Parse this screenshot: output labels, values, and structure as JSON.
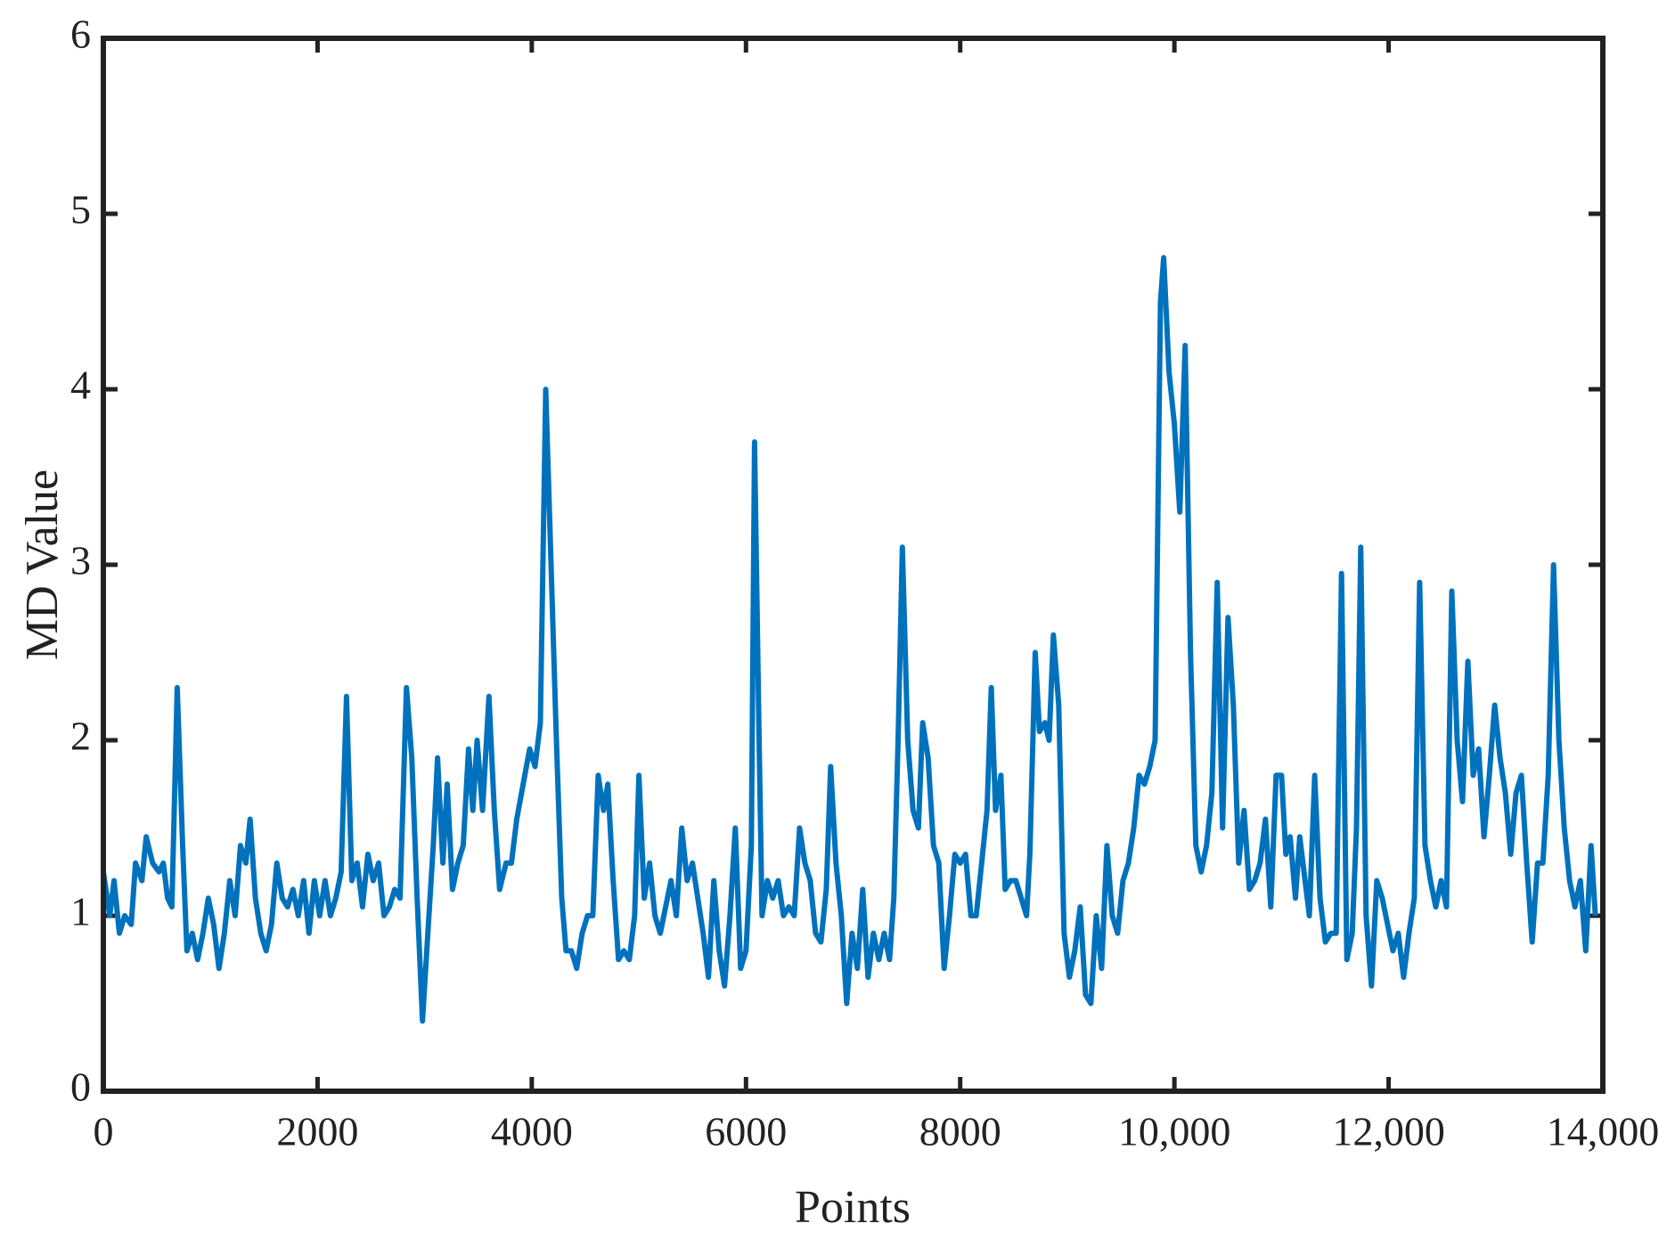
{
  "chart_data": {
    "type": "line",
    "x_label": "Points",
    "y_label": "MD Value",
    "xlim": [
      0,
      14000
    ],
    "ylim": [
      0,
      6
    ],
    "xticks": [
      0,
      2000,
      4000,
      6000,
      8000,
      {
        "value": 10000,
        "label": "10,000"
      },
      {
        "value": 12000,
        "label": "12,000"
      },
      {
        "value": 14000,
        "label": "14,000"
      }
    ],
    "yticks": [
      0,
      1,
      2,
      3,
      4,
      5,
      6
    ],
    "grid": false,
    "series": [
      {
        "color": "#0072bd",
        "x": [
          0,
          60,
          100,
          150,
          200,
          260,
          300,
          360,
          400,
          460,
          520,
          560,
          600,
          640,
          690,
          740,
          780,
          830,
          880,
          930,
          980,
          1030,
          1080,
          1130,
          1180,
          1230,
          1280,
          1330,
          1370,
          1420,
          1470,
          1520,
          1570,
          1620,
          1670,
          1720,
          1770,
          1820,
          1870,
          1920,
          1970,
          2020,
          2070,
          2120,
          2170,
          2220,
          2270,
          2320,
          2370,
          2420,
          2470,
          2520,
          2570,
          2620,
          2670,
          2720,
          2770,
          2830,
          2880,
          2930,
          2980,
          3030,
          3080,
          3120,
          3170,
          3210,
          3260,
          3310,
          3360,
          3410,
          3450,
          3490,
          3540,
          3600,
          3650,
          3700,
          3760,
          3810,
          3860,
          3920,
          3980,
          4030,
          4080,
          4130,
          4180,
          4230,
          4280,
          4320,
          4370,
          4420,
          4470,
          4520,
          4570,
          4620,
          4670,
          4710,
          4760,
          4810,
          4860,
          4910,
          4960,
          5000,
          5050,
          5100,
          5150,
          5200,
          5250,
          5300,
          5350,
          5400,
          5450,
          5500,
          5550,
          5600,
          5650,
          5700,
          5750,
          5800,
          5850,
          5900,
          5950,
          6000,
          6050,
          6080,
          6120,
          6150,
          6200,
          6250,
          6300,
          6350,
          6400,
          6450,
          6500,
          6550,
          6600,
          6650,
          6700,
          6750,
          6790,
          6840,
          6890,
          6940,
          6990,
          7040,
          7090,
          7140,
          7190,
          7240,
          7290,
          7340,
          7380,
          7420,
          7460,
          7510,
          7560,
          7610,
          7650,
          7700,
          7750,
          7800,
          7850,
          7900,
          7950,
          8000,
          8050,
          8100,
          8150,
          8200,
          8250,
          8290,
          8330,
          8380,
          8420,
          8470,
          8520,
          8570,
          8620,
          8650,
          8700,
          8740,
          8790,
          8830,
          8870,
          8920,
          8970,
          9020,
          9070,
          9120,
          9170,
          9220,
          9270,
          9320,
          9370,
          9420,
          9470,
          9520,
          9570,
          9620,
          9670,
          9720,
          9770,
          9820,
          9870,
          9900,
          9950,
          10000,
          10050,
          10100,
          10150,
          10200,
          10250,
          10300,
          10350,
          10400,
          10450,
          10500,
          10550,
          10600,
          10650,
          10700,
          10750,
          10800,
          10850,
          10900,
          10950,
          11000,
          11040,
          11080,
          11130,
          11170,
          11220,
          11260,
          11310,
          11360,
          11410,
          11460,
          11510,
          11560,
          11610,
          11660,
          11700,
          11740,
          11790,
          11840,
          11890,
          11940,
          11990,
          12040,
          12090,
          12140,
          12190,
          12240,
          12290,
          12340,
          12390,
          12440,
          12490,
          12540,
          12590,
          12640,
          12690,
          12740,
          12790,
          12840,
          12890,
          12940,
          12990,
          13040,
          13090,
          13140,
          13190,
          13240,
          13290,
          13340,
          13390,
          13440,
          13490,
          13540,
          13590,
          13640,
          13690,
          13740,
          13790,
          13840,
          13890,
          13930
        ],
        "values": [
          1.25,
          1.0,
          1.2,
          0.9,
          1.0,
          0.95,
          1.3,
          1.2,
          1.45,
          1.3,
          1.25,
          1.3,
          1.1,
          1.05,
          2.3,
          1.4,
          0.8,
          0.9,
          0.75,
          0.9,
          1.1,
          0.95,
          0.7,
          0.9,
          1.2,
          1.0,
          1.4,
          1.3,
          1.55,
          1.1,
          0.9,
          0.8,
          0.95,
          1.3,
          1.1,
          1.05,
          1.15,
          1.0,
          1.2,
          0.9,
          1.2,
          1.0,
          1.2,
          1.0,
          1.1,
          1.25,
          2.25,
          1.2,
          1.3,
          1.05,
          1.35,
          1.2,
          1.3,
          1.0,
          1.05,
          1.15,
          1.1,
          2.3,
          1.9,
          1.1,
          0.4,
          0.9,
          1.4,
          1.9,
          1.3,
          1.75,
          1.15,
          1.3,
          1.4,
          1.95,
          1.6,
          2.0,
          1.6,
          2.25,
          1.6,
          1.15,
          1.3,
          1.3,
          1.55,
          1.75,
          1.95,
          1.85,
          2.1,
          4.0,
          3.0,
          2.0,
          1.1,
          0.8,
          0.8,
          0.7,
          0.9,
          1.0,
          1.0,
          1.8,
          1.6,
          1.75,
          1.2,
          0.75,
          0.8,
          0.75,
          1.0,
          1.8,
          1.1,
          1.3,
          1.0,
          0.9,
          1.05,
          1.2,
          1.0,
          1.5,
          1.2,
          1.3,
          1.1,
          0.9,
          0.65,
          1.2,
          0.8,
          0.6,
          1.0,
          1.5,
          0.7,
          0.8,
          1.4,
          3.7,
          2.1,
          1.0,
          1.2,
          1.1,
          1.2,
          1.0,
          1.05,
          1.0,
          1.5,
          1.3,
          1.2,
          0.9,
          0.85,
          1.15,
          1.85,
          1.3,
          1.0,
          0.5,
          0.9,
          0.7,
          1.15,
          0.65,
          0.9,
          0.75,
          0.9,
          0.75,
          1.1,
          2.0,
          3.1,
          2.0,
          1.6,
          1.5,
          2.1,
          1.9,
          1.4,
          1.3,
          0.7,
          1.0,
          1.35,
          1.3,
          1.35,
          1.0,
          1.0,
          1.3,
          1.6,
          2.3,
          1.6,
          1.8,
          1.15,
          1.2,
          1.2,
          1.1,
          1.0,
          1.35,
          2.5,
          2.05,
          2.1,
          2.0,
          2.6,
          2.2,
          0.9,
          0.65,
          0.8,
          1.05,
          0.55,
          0.5,
          1.0,
          0.7,
          1.4,
          1.0,
          0.9,
          1.2,
          1.3,
          1.5,
          1.8,
          1.75,
          1.85,
          2.0,
          4.5,
          4.75,
          4.1,
          3.8,
          3.3,
          4.25,
          2.5,
          1.4,
          1.25,
          1.4,
          1.7,
          2.9,
          1.5,
          2.7,
          2.2,
          1.3,
          1.6,
          1.15,
          1.2,
          1.3,
          1.55,
          1.05,
          1.8,
          1.8,
          1.35,
          1.45,
          1.1,
          1.45,
          1.2,
          1.0,
          1.8,
          1.1,
          0.85,
          0.9,
          0.9,
          2.95,
          0.75,
          0.9,
          1.5,
          3.1,
          1.0,
          0.6,
          1.2,
          1.1,
          0.95,
          0.8,
          0.9,
          0.65,
          0.9,
          1.1,
          2.9,
          1.4,
          1.2,
          1.05,
          1.2,
          1.05,
          2.85,
          2.0,
          1.65,
          2.45,
          1.8,
          1.95,
          1.45,
          1.8,
          2.2,
          1.9,
          1.7,
          1.35,
          1.7,
          1.8,
          1.3,
          0.85,
          1.3,
          1.3,
          1.8,
          3.0,
          2.0,
          1.5,
          1.2,
          1.05,
          1.2,
          0.8,
          1.4,
          1.0
        ]
      }
    ]
  }
}
